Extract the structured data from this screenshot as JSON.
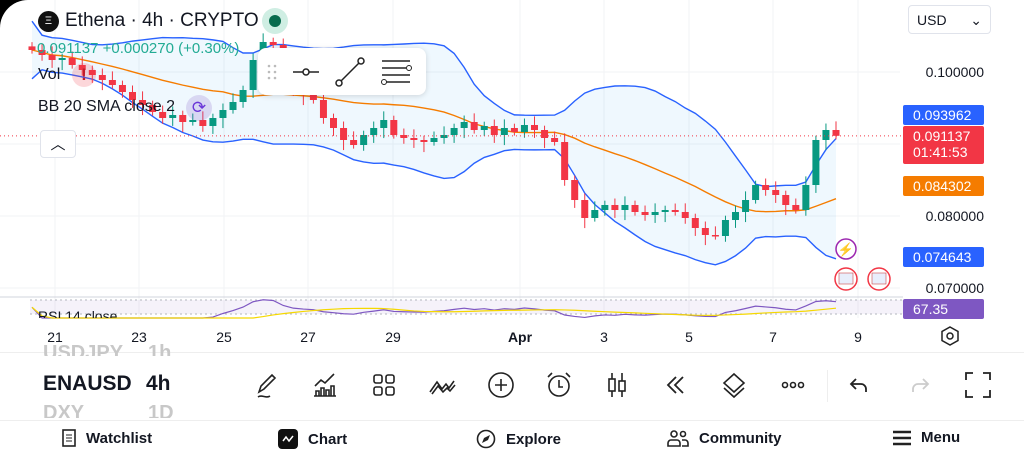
{
  "header": {
    "symbol_title": "Ethena · 4h · CRYPTO",
    "logo_glyph": "Ξ",
    "price_line": "0.091137 +0.000270 (+0.30%)",
    "vol_label": "Vol",
    "bb_label": "BB 20 SMA close 2",
    "currency": "USD",
    "rsi_label": "RSI 14 close"
  },
  "price_axis": {
    "labels": [
      "0.100000",
      "0.080000",
      "0.070000"
    ]
  },
  "price_tags": [
    {
      "value": "0.093962",
      "color": "#2962ff"
    },
    {
      "value": "0.091137",
      "color": "#f23645",
      "sub": "01:41:53"
    },
    {
      "value": "0.084302",
      "color": "#f57c00"
    },
    {
      "value": "0.074643",
      "color": "#2962ff"
    },
    {
      "value": "67.35",
      "color": "#7e57c2"
    }
  ],
  "x_axis": {
    "labels": [
      "21",
      "23",
      "25",
      "27",
      "29",
      "Apr",
      "3",
      "5",
      "7",
      "9"
    ]
  },
  "colors": {
    "up": "#089981",
    "down": "#f23645",
    "band": "#2962ff",
    "basis": "#f57c00",
    "rsi": "#7e57c2",
    "rsi_ma": "#f5d800"
  },
  "chart_data": {
    "type": "candlestick",
    "title": "Ethena · 4h · CRYPTO",
    "ylim": [
      0.068,
      0.106
    ],
    "closes": [
      0.103056,
      0.102361,
      0.101667,
      0.101944,
      0.100972,
      0.100278,
      0.099583,
      0.098889,
      0.098194,
      0.097222,
      0.096111,
      0.095417,
      0.094444,
      0.093611,
      0.094028,
      0.093056,
      0.093333,
      0.0925,
      0.093611,
      0.094722,
      0.095833,
      0.0975,
      0.101667,
      0.104167,
      0.10375,
      0.100278,
      0.097778,
      0.096806,
      0.096111,
      0.093611,
      0.092222,
      0.090556,
      0.089861,
      0.09125,
      0.092222,
      0.093333,
      0.09125,
      0.090833,
      0.090556,
      0.090278,
      0.090833,
      0.09125,
      0.092222,
      0.093056,
      0.091944,
      0.0925,
      0.09125,
      0.092222,
      0.091667,
      0.092639,
      0.091944,
      0.090833,
      0.090278,
      0.085,
      0.082222,
      0.079722,
      0.080833,
      0.081528,
      0.080833,
      0.081528,
      0.080556,
      0.080139,
      0.080556,
      0.080833,
      0.080556,
      0.079722,
      0.078333,
      0.077361,
      0.077222,
      0.079444,
      0.080556,
      0.082222,
      0.084306,
      0.083611,
      0.082917,
      0.081528,
      0.080833,
      0.084306,
      0.090556,
      0.091944,
      0.091137
    ]
  },
  "symbols": {
    "current": "ENAUSD",
    "prev": "USDJPY",
    "next": "DXY",
    "tf": "4h",
    "prev_tf": "1h",
    "next_tf": "1D"
  },
  "tools": [
    "pencil-icon",
    "indicators-icon",
    "templates-icon",
    "compare-icon",
    "add-icon",
    "alert-icon",
    "candles-icon",
    "replay-icon",
    "layers-icon",
    "more-icon",
    "undo-icon",
    "redo-icon",
    "fullscreen-icon"
  ],
  "nav": [
    {
      "label": "Watchlist"
    },
    {
      "label": "Chart"
    },
    {
      "label": "Explore"
    },
    {
      "label": "Community"
    },
    {
      "label": "Menu"
    }
  ]
}
